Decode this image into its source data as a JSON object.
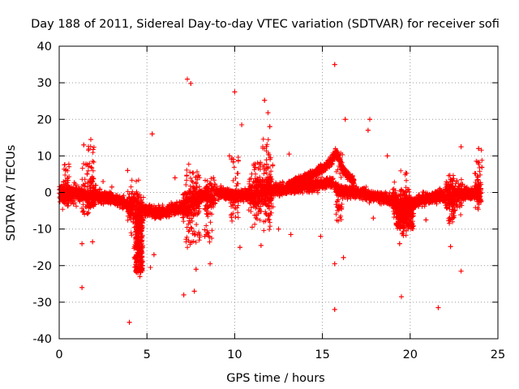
{
  "chart_data": {
    "type": "scatter",
    "title": "Day 188 of 2011, Sidereal Day-to-day VTEC variation (SDTVAR) for receiver sofi",
    "xlabel": "GPS time / hours",
    "ylabel": "SDTVAR / TECUs",
    "xlim": [
      0,
      25
    ],
    "ylim": [
      -40,
      40
    ],
    "xticks": [
      0,
      5,
      10,
      15,
      20,
      25
    ],
    "yticks": [
      -40,
      -30,
      -20,
      -10,
      0,
      10,
      20,
      30,
      40
    ],
    "xtick_labels": [
      "0",
      "5",
      "10",
      "15",
      "20",
      "25"
    ],
    "ytick_labels": [
      "-40",
      "-30",
      "-20",
      "-10",
      "0",
      "10",
      "20",
      "30",
      "40"
    ],
    "grid": "dotted",
    "marker": "+",
    "color": "#ff0000",
    "baseline_trend": {
      "description": "approximate central trend of the dense point band",
      "x": [
        0,
        1,
        2,
        3,
        3.5,
        4.2,
        5,
        6,
        7,
        7.5,
        8.2,
        9,
        10,
        11,
        12,
        13,
        14,
        15,
        15.5,
        16,
        17,
        18,
        19,
        19.5,
        20,
        21,
        22,
        23,
        24
      ],
      "y": [
        0,
        -0.5,
        -1,
        -1.5,
        -2.5,
        -4,
        -5,
        -5.5,
        -4,
        -3,
        -1,
        0,
        -1,
        -0.5,
        0.5,
        1,
        1.5,
        2.5,
        3,
        0.5,
        0,
        -1,
        -2,
        -4.5,
        -3,
        -1.5,
        -1,
        -0.5,
        0
      ]
    },
    "upper_branch": {
      "description": "secondary rising branch of points ending in a peak near 15.8 h",
      "x": [
        13,
        14,
        15,
        15.5,
        15.8,
        16.2,
        16.8
      ],
      "y": [
        2,
        4,
        6.5,
        8.5,
        11,
        6,
        3
      ]
    },
    "outliers": [
      {
        "x": 7.3,
        "y": 31
      },
      {
        "x": 7.5,
        "y": 29.8
      },
      {
        "x": 15.7,
        "y": 35
      },
      {
        "x": 10,
        "y": 27.5
      },
      {
        "x": 11.7,
        "y": 25.2
      },
      {
        "x": 11.9,
        "y": 21.8
      },
      {
        "x": 10.4,
        "y": 18.5
      },
      {
        "x": 5.3,
        "y": 16
      },
      {
        "x": 1.4,
        "y": 13
      },
      {
        "x": 1.8,
        "y": 14.5
      },
      {
        "x": 16.3,
        "y": 20
      },
      {
        "x": 17.7,
        "y": 20
      },
      {
        "x": 17.6,
        "y": 17
      },
      {
        "x": 23.9,
        "y": 12
      },
      {
        "x": 22.9,
        "y": 12.5
      },
      {
        "x": 12,
        "y": 18
      },
      {
        "x": 4.0,
        "y": -35.5
      },
      {
        "x": 1.3,
        "y": -26
      },
      {
        "x": 7.1,
        "y": -28
      },
      {
        "x": 7.7,
        "y": -27
      },
      {
        "x": 15.7,
        "y": -32
      },
      {
        "x": 21.6,
        "y": -31.5
      },
      {
        "x": 19.5,
        "y": -28.5
      },
      {
        "x": 22.9,
        "y": -21.5
      },
      {
        "x": 4.6,
        "y": -23
      },
      {
        "x": 15.7,
        "y": -19.5
      },
      {
        "x": 16.2,
        "y": -17.8
      },
      {
        "x": 8.6,
        "y": -19.5
      },
      {
        "x": 1.3,
        "y": -14
      },
      {
        "x": 1.9,
        "y": -13.5
      },
      {
        "x": 10.3,
        "y": -15
      },
      {
        "x": 11.5,
        "y": -14.5
      },
      {
        "x": 5.4,
        "y": -17
      },
      {
        "x": 5.2,
        "y": -20.5
      },
      {
        "x": 7.8,
        "y": -21
      },
      {
        "x": 14.9,
        "y": -12
      },
      {
        "x": 19.4,
        "y": -14
      },
      {
        "x": 22.3,
        "y": -14.8
      },
      {
        "x": 3.9,
        "y": 6
      },
      {
        "x": 2.5,
        "y": 3
      },
      {
        "x": 18.7,
        "y": 10
      },
      {
        "x": 13.1,
        "y": 10.5
      },
      {
        "x": 9.7,
        "y": 10
      },
      {
        "x": 6.6,
        "y": 4
      },
      {
        "x": 12.5,
        "y": -10
      },
      {
        "x": 13.2,
        "y": -11.5
      },
      {
        "x": 17.9,
        "y": -7
      },
      {
        "x": 20.9,
        "y": -7.5
      },
      {
        "x": 3.0,
        "y": 1.5
      },
      {
        "x": 8.3,
        "y": -12
      },
      {
        "x": 11.0,
        "y": -9.5
      }
    ]
  }
}
